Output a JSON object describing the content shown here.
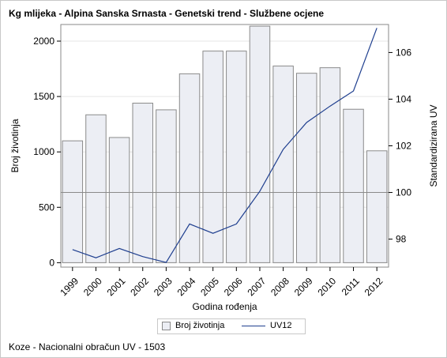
{
  "title": "Kg mlijeka - Alpina Sanska Srnasta - Genetski trend - Službene ocjene",
  "footnote": "Koze - Nacionalni obračun UV - 1503",
  "colors": {
    "bar_fill": "#eceef4",
    "bar_stroke": "#8a8a8a",
    "line": "#1f3f8f",
    "reference_line": "#8a8a8a",
    "grid": "#e6e6e6",
    "frame": "#8a8a8a"
  },
  "chart_data": {
    "type": "bar",
    "title": "Kg mlijeka - Alpina Sanska Srnasta - Genetski trend - Službene ocjene",
    "xlabel": "Godina rođenja",
    "ylabel": "Broj životinja",
    "y2label": "Standardizirana UV",
    "categories": [
      "1999",
      "2000",
      "2001",
      "2002",
      "2003",
      "2004",
      "2005",
      "2006",
      "2007",
      "2008",
      "2009",
      "2010",
      "2011",
      "2012"
    ],
    "ylim": [
      -40,
      2150
    ],
    "yticks": [
      0,
      500,
      1000,
      1500,
      2000
    ],
    "y2lim": [
      96.8,
      107.2
    ],
    "y2ticks": [
      98,
      100,
      102,
      104,
      106
    ],
    "reference_y2": 100,
    "grid": true,
    "legend_position": "bottom",
    "series": [
      {
        "name": "Broj životinja",
        "type": "bar",
        "axis": "left",
        "values": [
          1100,
          1335,
          1130,
          1440,
          1380,
          1705,
          1910,
          1910,
          2135,
          1775,
          1710,
          1760,
          1385,
          1010
        ]
      },
      {
        "name": "UV12",
        "type": "line",
        "axis": "right",
        "values": [
          97.55,
          97.2,
          97.6,
          97.25,
          97.0,
          98.65,
          98.25,
          98.65,
          100.05,
          101.85,
          103.0,
          103.7,
          104.35,
          107.05
        ]
      }
    ]
  }
}
